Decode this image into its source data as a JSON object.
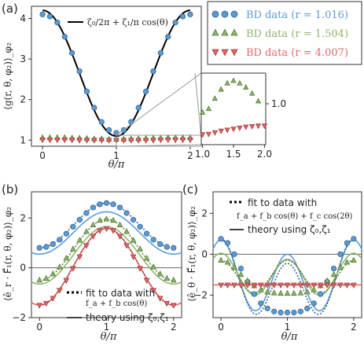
{
  "colors": {
    "blue": "#5b9bd5",
    "blue_edge": "#2f5f8f",
    "green": "#8db56a",
    "green_edge": "#4f7a35",
    "red": "#e06666",
    "red_edge": "#a33b3b",
    "theory": "#000000"
  },
  "panel_labels": {
    "a": "(a)",
    "b": "(b)",
    "c": "(c)"
  },
  "chart_data": [
    {
      "id": "a",
      "type": "scatter",
      "xlabel": "θ/π",
      "ylabel": "⟨g(r, θ, φ₂)⟩_φ₂",
      "xlim": [
        0,
        2
      ],
      "ylim": [
        0.85,
        4.3
      ],
      "xticks": [
        0,
        1,
        2
      ],
      "yticks": [
        1,
        2,
        3,
        4
      ],
      "legend": {
        "placement": "top-right",
        "entries": [
          {
            "marker": "circle",
            "color": "blue",
            "label": "BD data (r = 1.016)"
          },
          {
            "marker": "triangle-up",
            "color": "green",
            "label": "BD data (r = 1.504)"
          },
          {
            "marker": "triangle-down",
            "color": "red",
            "label": "BD data (r = 4.007)"
          }
        ]
      },
      "curve_legend": {
        "label": "ζ₀/2π + ζ₁/π cos(θ)"
      },
      "theory": {
        "a": 2.65,
        "b": 1.55
      },
      "series": [
        {
          "name": "BD data (r = 1.016)",
          "marker": "circle",
          "color": "blue",
          "x": [
            0.0,
            0.1,
            0.2,
            0.3,
            0.4,
            0.5,
            0.6,
            0.7,
            0.8,
            0.9,
            1.0,
            1.1,
            1.2,
            1.3,
            1.4,
            1.5,
            1.6,
            1.7,
            1.8,
            1.9,
            2.0
          ],
          "y": [
            4.1,
            4.05,
            3.9,
            3.55,
            3.15,
            2.7,
            2.2,
            1.8,
            1.45,
            1.25,
            1.18,
            1.25,
            1.45,
            1.8,
            2.2,
            2.7,
            3.15,
            3.55,
            3.9,
            4.05,
            4.1
          ]
        },
        {
          "name": "BD data (r = 1.504)",
          "marker": "triangle-up",
          "color": "green",
          "x": [
            0.0,
            0.1,
            0.2,
            0.3,
            0.4,
            0.5,
            0.6,
            0.7,
            0.8,
            0.9,
            1.0,
            1.1,
            1.2,
            1.3,
            1.4,
            1.5,
            1.6,
            1.7,
            1.8,
            1.9,
            2.0
          ],
          "y": [
            1.06,
            1.06,
            1.06,
            1.06,
            1.05,
            1.05,
            1.04,
            1.03,
            1.03,
            1.02,
            1.02,
            1.02,
            1.03,
            1.03,
            1.04,
            1.05,
            1.05,
            1.06,
            1.06,
            1.06,
            1.06
          ]
        },
        {
          "name": "BD data (r = 4.007)",
          "marker": "triangle-down",
          "color": "red",
          "x": [
            0.0,
            0.1,
            0.2,
            0.3,
            0.4,
            0.5,
            0.6,
            0.7,
            0.8,
            0.9,
            1.0,
            1.1,
            1.2,
            1.3,
            1.4,
            1.5,
            1.6,
            1.7,
            1.8,
            1.9,
            2.0
          ],
          "y": [
            1.01,
            1.01,
            1.01,
            1.01,
            1.01,
            1.0,
            1.0,
            1.0,
            1.0,
            1.0,
            1.0,
            1.0,
            1.0,
            1.0,
            1.0,
            1.0,
            1.01,
            1.01,
            1.01,
            1.01,
            1.01
          ]
        }
      ]
    },
    {
      "id": "a-inset",
      "type": "scatter",
      "xlim": [
        1,
        2
      ],
      "ylim": [
        0.92,
        1.06
      ],
      "xticks": [
        1.0,
        1.5,
        2.0
      ],
      "yticks": [
        1.0
      ],
      "series": [
        {
          "name": "r = 1.504",
          "marker": "triangle-up",
          "color": "green",
          "x": [
            1.0,
            1.1,
            1.2,
            1.3,
            1.4,
            1.5,
            1.6,
            1.7,
            1.8,
            1.9
          ],
          "y": [
            0.983,
            0.99,
            1.01,
            1.028,
            1.04,
            1.045,
            1.04,
            1.032,
            1.02,
            1.005
          ]
        },
        {
          "name": "r = 4.007",
          "marker": "triangle-down",
          "color": "red",
          "x": [
            1.0,
            1.1,
            1.2,
            1.3,
            1.4,
            1.5,
            1.6,
            1.7,
            1.8,
            1.9,
            2.0
          ],
          "y": [
            0.94,
            0.941,
            0.944,
            0.947,
            0.949,
            0.951,
            0.953,
            0.955,
            0.956,
            0.957,
            0.957
          ]
        }
      ]
    },
    {
      "id": "b",
      "type": "scatter",
      "xlabel": "θ/π",
      "ylabel": "⟨ê_r · F⃗₁(r, θ, φ₂)⟩_φ₂",
      "xlim": [
        -0.12,
        2.12
      ],
      "ylim": [
        -2.0,
        3.05
      ],
      "xticks": [
        0,
        1,
        2
      ],
      "yticks": [
        -2,
        0,
        2
      ],
      "legend": {
        "placement": "bottom-right",
        "entries": [
          {
            "style": "dotted",
            "label": "fit to data with",
            "formula": "f_a + f_b cos(θ)"
          },
          {
            "style": "solid",
            "label": "theory using ζ₀,ζ₁"
          }
        ]
      },
      "series": [
        {
          "name": "r = 1.016",
          "marker": "circle",
          "color": "blue",
          "x": [
            0.0,
            0.1,
            0.2,
            0.3,
            0.4,
            0.5,
            0.6,
            0.7,
            0.8,
            0.9,
            1.0,
            1.1,
            1.2,
            1.3,
            1.4,
            1.5,
            1.6,
            1.7,
            1.8,
            1.9,
            2.0
          ],
          "y": [
            0.8,
            0.84,
            0.95,
            1.13,
            1.37,
            1.65,
            1.93,
            2.2,
            2.42,
            2.55,
            2.6,
            2.55,
            2.42,
            2.2,
            1.93,
            1.65,
            1.37,
            1.13,
            0.95,
            0.84,
            0.8
          ],
          "fit": [
            1.7,
            0.9
          ],
          "theory": [
            1.4,
            0.85
          ]
        },
        {
          "name": "r = 1.504",
          "marker": "triangle-up",
          "color": "green",
          "x": [
            0.0,
            0.1,
            0.2,
            0.3,
            0.4,
            0.5,
            0.6,
            0.7,
            0.8,
            0.9,
            1.0,
            1.1,
            1.2,
            1.3,
            1.4,
            1.5,
            1.6,
            1.7,
            1.8,
            1.9,
            2.0
          ],
          "y": [
            -0.5,
            -0.43,
            -0.25,
            0.03,
            0.38,
            0.75,
            1.1,
            1.45,
            1.72,
            1.9,
            1.95,
            1.9,
            1.72,
            1.45,
            1.1,
            0.75,
            0.38,
            0.03,
            -0.25,
            -0.43,
            -0.5
          ],
          "fit": [
            0.72,
            1.23
          ],
          "theory": [
            0.5,
            1.15
          ]
        },
        {
          "name": "r = 4.007",
          "marker": "triangle-down",
          "color": "red",
          "x": [
            0.0,
            0.1,
            0.2,
            0.3,
            0.4,
            0.5,
            0.6,
            0.7,
            0.8,
            0.9,
            1.0,
            1.1,
            1.2,
            1.3,
            1.4,
            1.5,
            1.6,
            1.7,
            1.8,
            1.9,
            2.0
          ],
          "y": [
            -1.5,
            -1.42,
            -1.22,
            -0.9,
            -0.5,
            -0.02,
            0.45,
            0.9,
            1.27,
            1.5,
            1.58,
            1.5,
            1.27,
            0.9,
            0.45,
            -0.02,
            -0.5,
            -0.9,
            -1.22,
            -1.42,
            -1.5
          ],
          "fit": [
            0.04,
            1.54
          ],
          "theory": [
            0.04,
            1.54
          ]
        }
      ]
    },
    {
      "id": "c",
      "type": "scatter",
      "xlabel": "θ/π",
      "ylabel": "⟨ê_θ · F⃗₁(r, θ, φ₂)⟩_φ₂",
      "xlim": [
        -0.12,
        2.12
      ],
      "ylim": [
        -3.1,
        3.05
      ],
      "xticks": [
        0,
        1,
        2
      ],
      "yticks": [
        -2,
        0,
        2
      ],
      "legend": {
        "placement": "top-right",
        "entries": [
          {
            "style": "dotted",
            "label": "fit to data with",
            "formula": "f_a + f_b cos(θ) + f_c cos(2θ)"
          },
          {
            "style": "solid",
            "label": "theory using ζ₀,ζ₁"
          }
        ]
      },
      "series": [
        {
          "name": "r = 1.016",
          "marker": "circle",
          "color": "blue",
          "x": [
            0.0,
            0.1,
            0.2,
            0.3,
            0.4,
            0.5,
            0.6,
            0.7,
            0.8,
            0.9,
            1.0,
            1.1,
            1.2,
            1.3,
            1.4,
            1.5,
            1.6,
            1.7,
            1.8,
            1.9,
            2.0
          ],
          "y": [
            0.75,
            0.55,
            0.0,
            -0.7,
            -1.35,
            -1.95,
            -2.4,
            -2.65,
            -2.8,
            -2.85,
            -2.85,
            -2.85,
            -2.8,
            -2.65,
            -2.4,
            -1.95,
            -1.35,
            -0.7,
            0.0,
            0.55,
            0.75
          ],
          "fit": [
            -1.38,
            0.6,
            1.53
          ],
          "theory": [
            -1.2,
            0.35,
            1.55
          ]
        },
        {
          "name": "r = 1.504",
          "marker": "triangle-up",
          "color": "green",
          "x": [
            0.0,
            0.1,
            0.2,
            0.3,
            0.4,
            0.5,
            0.6,
            0.7,
            0.8,
            0.9,
            1.0,
            1.1,
            1.2,
            1.3,
            1.4,
            1.5,
            1.6,
            1.7,
            1.8,
            1.9,
            2.0
          ],
          "y": [
            -0.3,
            -0.4,
            -0.65,
            -1.0,
            -1.3,
            -1.55,
            -1.75,
            -1.85,
            -1.9,
            -1.92,
            -1.92,
            -1.92,
            -1.9,
            -1.85,
            -1.75,
            -1.55,
            -1.3,
            -1.0,
            -0.65,
            -0.4,
            -0.3
          ],
          "fit": [
            -1.1,
            0.0,
            0.8
          ],
          "theory": [
            -1.05,
            0.15,
            0.95
          ]
        },
        {
          "name": "r = 4.007",
          "marker": "triangle-down",
          "color": "red",
          "x": [
            0.0,
            0.1,
            0.2,
            0.3,
            0.4,
            0.5,
            0.6,
            0.7,
            0.8,
            0.9,
            1.0,
            1.1,
            1.2,
            1.3,
            1.4,
            1.5,
            1.6,
            1.7,
            1.8,
            1.9,
            2.0
          ],
          "y": [
            -1.5,
            -1.5,
            -1.5,
            -1.5,
            -1.5,
            -1.5,
            -1.5,
            -1.5,
            -1.5,
            -1.5,
            -1.5,
            -1.5,
            -1.5,
            -1.5,
            -1.5,
            -1.5,
            -1.5,
            -1.5,
            -1.5,
            -1.5,
            -1.5
          ],
          "fit": [
            -1.5,
            0.0,
            0.0
          ],
          "theory": [
            -1.5,
            0.0,
            0.0
          ]
        }
      ]
    }
  ]
}
